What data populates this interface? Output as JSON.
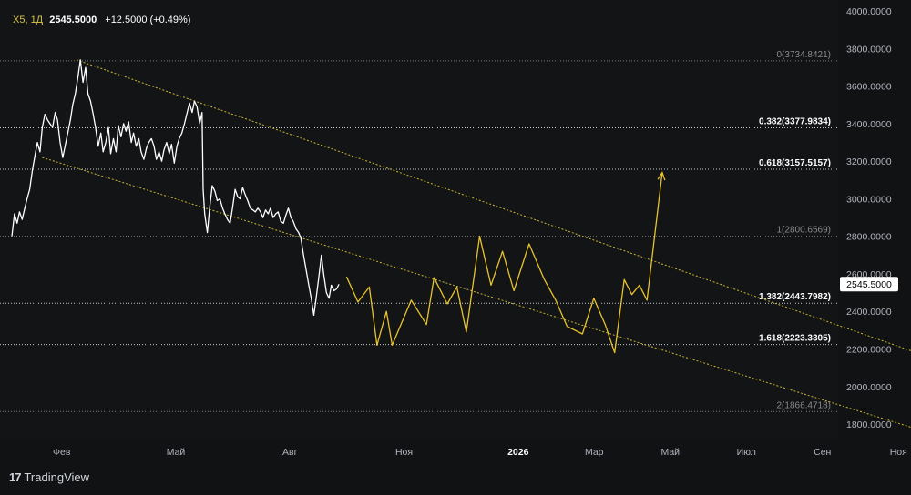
{
  "header": {
    "symbol": "X5, 1Д",
    "price": "2545.5000",
    "change": "+12.5000 (+0.49%)"
  },
  "brand": {
    "logo": "17",
    "name": "TradingView"
  },
  "colors": {
    "background": "#111214",
    "history": "#ffffff",
    "projection": "#e8c32c",
    "channel": "#c9b534",
    "fib_line": "#9a9a9a"
  },
  "chart_data": {
    "type": "line",
    "title": "",
    "xlabel": "",
    "ylabel": "",
    "ylim": [
      1720,
      4000
    ],
    "y_ticks": [
      "1800.0000",
      "2000.0000",
      "2200.0000",
      "2400.0000",
      "2600.0000",
      "2800.0000",
      "3000.0000",
      "3200.0000",
      "3400.0000",
      "3600.0000",
      "3800.0000",
      "4000.0000"
    ],
    "x_ticks": [
      {
        "label": "Фев",
        "t": 1.0
      },
      {
        "label": "Май",
        "t": 4.0
      },
      {
        "label": "Авг",
        "t": 7.0
      },
      {
        "label": "Ноя",
        "t": 10.0
      },
      {
        "label": "2026",
        "t": 13.0
      },
      {
        "label": "Мар",
        "t": 15.0
      },
      {
        "label": "Май",
        "t": 17.0
      },
      {
        "label": "Июл",
        "t": 19.0
      },
      {
        "label": "Сен",
        "t": 21.0
      },
      {
        "label": "Ноя",
        "t": 23.0
      }
    ],
    "last_price": "2545.5000",
    "last_price_value": 2545.5,
    "fib_levels": [
      {
        "label": "0(3734.8421)",
        "value": 3734.8421,
        "bold": false
      },
      {
        "label": "0.382(3377.9834)",
        "value": 3377.9834,
        "bold": true
      },
      {
        "label": "0.618(3157.5157)",
        "value": 3157.5157,
        "bold": true
      },
      {
        "label": "1(2800.6569)",
        "value": 2800.6569,
        "bold": false
      },
      {
        "label": "1.382(2443.7982)",
        "value": 2443.7982,
        "bold": true
      },
      {
        "label": "1.618(2223.3305)",
        "value": 2223.3305,
        "bold": true
      },
      {
        "label": "2(1866.4718)",
        "value": 1866.4718,
        "bold": false
      }
    ],
    "channel": [
      {
        "name": "upper",
        "from": [
          1.7,
          3740
        ],
        "to": [
          26.2,
          2010
        ]
      },
      {
        "name": "lower",
        "from": [
          0.8,
          3220
        ],
        "to": [
          24.8,
          1710
        ]
      }
    ],
    "series": [
      {
        "role": "history",
        "points": [
          [
            0.0,
            2800
          ],
          [
            0.07,
            2920
          ],
          [
            0.14,
            2870
          ],
          [
            0.2,
            2930
          ],
          [
            0.27,
            2890
          ],
          [
            0.34,
            2950
          ],
          [
            0.4,
            3000
          ],
          [
            0.47,
            3050
          ],
          [
            0.54,
            3150
          ],
          [
            0.6,
            3220
          ],
          [
            0.67,
            3300
          ],
          [
            0.74,
            3250
          ],
          [
            0.8,
            3380
          ],
          [
            0.87,
            3450
          ],
          [
            0.94,
            3420
          ],
          [
            1.0,
            3400
          ],
          [
            1.07,
            3380
          ],
          [
            1.14,
            3460
          ],
          [
            1.2,
            3420
          ],
          [
            1.27,
            3300
          ],
          [
            1.34,
            3220
          ],
          [
            1.4,
            3280
          ],
          [
            1.47,
            3350
          ],
          [
            1.54,
            3420
          ],
          [
            1.6,
            3500
          ],
          [
            1.67,
            3560
          ],
          [
            1.74,
            3650
          ],
          [
            1.8,
            3740
          ],
          [
            1.87,
            3620
          ],
          [
            1.94,
            3700
          ],
          [
            2.0,
            3560
          ],
          [
            2.07,
            3520
          ],
          [
            2.14,
            3450
          ],
          [
            2.2,
            3380
          ],
          [
            2.27,
            3280
          ],
          [
            2.34,
            3350
          ],
          [
            2.4,
            3250
          ],
          [
            2.47,
            3300
          ],
          [
            2.54,
            3380
          ],
          [
            2.6,
            3240
          ],
          [
            2.67,
            3320
          ],
          [
            2.74,
            3250
          ],
          [
            2.8,
            3390
          ],
          [
            2.87,
            3330
          ],
          [
            2.94,
            3400
          ],
          [
            3.0,
            3360
          ],
          [
            3.07,
            3410
          ],
          [
            3.14,
            3300
          ],
          [
            3.2,
            3350
          ],
          [
            3.27,
            3280
          ],
          [
            3.34,
            3320
          ],
          [
            3.4,
            3250
          ],
          [
            3.47,
            3210
          ],
          [
            3.54,
            3270
          ],
          [
            3.6,
            3300
          ],
          [
            3.67,
            3320
          ],
          [
            3.74,
            3280
          ],
          [
            3.8,
            3210
          ],
          [
            3.87,
            3250
          ],
          [
            3.94,
            3200
          ],
          [
            4.0,
            3260
          ],
          [
            4.07,
            3300
          ],
          [
            4.14,
            3240
          ],
          [
            4.2,
            3290
          ],
          [
            4.27,
            3190
          ],
          [
            4.34,
            3280
          ],
          [
            4.4,
            3320
          ],
          [
            4.47,
            3350
          ],
          [
            4.54,
            3400
          ],
          [
            4.6,
            3450
          ],
          [
            4.67,
            3510
          ],
          [
            4.74,
            3460
          ],
          [
            4.8,
            3520
          ],
          [
            4.87,
            3490
          ],
          [
            4.94,
            3400
          ],
          [
            5.0,
            3460
          ],
          [
            5.03,
            3050
          ],
          [
            5.07,
            2920
          ],
          [
            5.14,
            2820
          ],
          [
            5.2,
            2950
          ],
          [
            5.27,
            3070
          ],
          [
            5.34,
            3040
          ],
          [
            5.4,
            2990
          ],
          [
            5.47,
            3000
          ],
          [
            5.54,
            2950
          ],
          [
            5.6,
            2920
          ],
          [
            5.67,
            2890
          ],
          [
            5.74,
            2870
          ],
          [
            5.8,
            2950
          ],
          [
            5.87,
            3050
          ],
          [
            5.94,
            3010
          ],
          [
            6.0,
            3000
          ],
          [
            6.07,
            3060
          ],
          [
            6.14,
            3020
          ],
          [
            6.2,
            2990
          ],
          [
            6.27,
            2950
          ],
          [
            6.34,
            2940
          ],
          [
            6.4,
            2930
          ],
          [
            6.47,
            2950
          ],
          [
            6.54,
            2930
          ],
          [
            6.6,
            2900
          ],
          [
            6.67,
            2940
          ],
          [
            6.74,
            2920
          ],
          [
            6.8,
            2950
          ],
          [
            6.87,
            2900
          ],
          [
            6.94,
            2920
          ],
          [
            7.0,
            2930
          ],
          [
            7.07,
            2880
          ],
          [
            7.14,
            2870
          ],
          [
            7.2,
            2910
          ],
          [
            7.27,
            2950
          ],
          [
            7.34,
            2900
          ],
          [
            7.4,
            2880
          ],
          [
            7.47,
            2840
          ],
          [
            7.54,
            2820
          ],
          [
            7.6,
            2790
          ],
          [
            7.67,
            2700
          ],
          [
            7.74,
            2620
          ],
          [
            7.8,
            2550
          ],
          [
            7.87,
            2470
          ],
          [
            7.94,
            2380
          ],
          [
            8.0,
            2470
          ],
          [
            8.07,
            2580
          ],
          [
            8.14,
            2700
          ],
          [
            8.2,
            2600
          ],
          [
            8.27,
            2500
          ],
          [
            8.34,
            2470
          ],
          [
            8.4,
            2540
          ],
          [
            8.47,
            2510
          ],
          [
            8.54,
            2520
          ],
          [
            8.6,
            2545
          ]
        ]
      },
      {
        "role": "projection",
        "points": [
          [
            8.8,
            2585
          ],
          [
            9.1,
            2450
          ],
          [
            9.4,
            2530
          ],
          [
            9.6,
            2220
          ],
          [
            9.85,
            2400
          ],
          [
            10.0,
            2220
          ],
          [
            10.5,
            2460
          ],
          [
            10.9,
            2330
          ],
          [
            11.1,
            2580
          ],
          [
            11.45,
            2440
          ],
          [
            11.7,
            2530
          ],
          [
            11.95,
            2290
          ],
          [
            12.3,
            2800
          ],
          [
            12.6,
            2540
          ],
          [
            12.9,
            2720
          ],
          [
            13.2,
            2510
          ],
          [
            13.6,
            2760
          ],
          [
            14.0,
            2570
          ],
          [
            14.3,
            2460
          ],
          [
            14.6,
            2320
          ],
          [
            15.0,
            2280
          ],
          [
            15.3,
            2470
          ],
          [
            15.6,
            2330
          ],
          [
            15.85,
            2180
          ],
          [
            16.1,
            2570
          ],
          [
            16.3,
            2490
          ],
          [
            16.5,
            2540
          ],
          [
            16.7,
            2460
          ],
          [
            17.1,
            3140
          ]
        ]
      }
    ]
  }
}
